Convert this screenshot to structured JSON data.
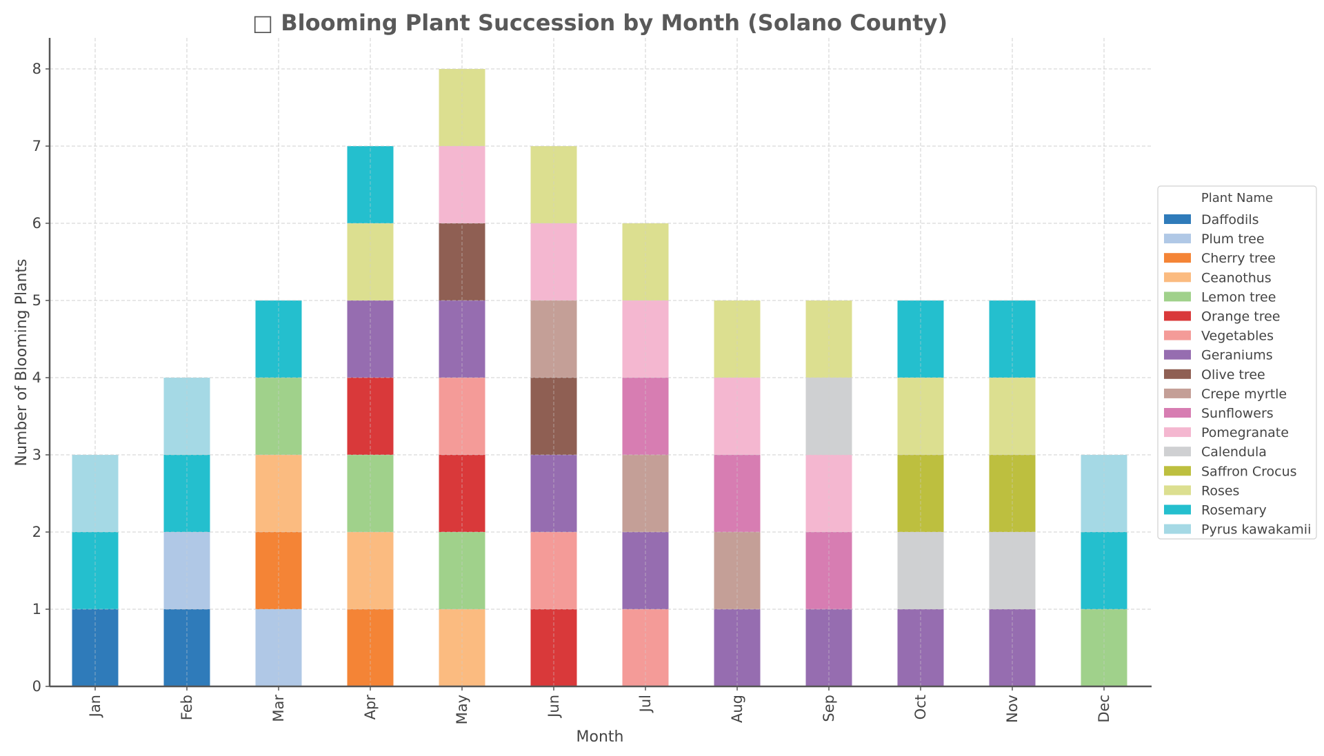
{
  "chart_data": {
    "type": "bar",
    "stacked": true,
    "title": "□ Blooming Plant Succession by Month (Solano County)",
    "xlabel": "Month",
    "ylabel": "Number of Blooming Plants",
    "ylim": [
      0,
      8.4
    ],
    "yticks": [
      0,
      1,
      2,
      3,
      4,
      5,
      6,
      7,
      8
    ],
    "grid": true,
    "legend_title": "Plant Name",
    "legend_position": "center-right",
    "categories": [
      "Jan",
      "Feb",
      "Mar",
      "Apr",
      "May",
      "Jun",
      "Jul",
      "Aug",
      "Sep",
      "Oct",
      "Nov",
      "Dec"
    ],
    "series": [
      {
        "name": "Daffodils",
        "color": "#2f7bba",
        "values": [
          1,
          1,
          0,
          0,
          0,
          0,
          0,
          0,
          0,
          0,
          0,
          0
        ]
      },
      {
        "name": "Plum tree",
        "color": "#b0c8e6",
        "values": [
          0,
          1,
          1,
          0,
          0,
          0,
          0,
          0,
          0,
          0,
          0,
          0
        ]
      },
      {
        "name": "Cherry tree",
        "color": "#f48436",
        "values": [
          0,
          0,
          1,
          1,
          0,
          0,
          0,
          0,
          0,
          0,
          0,
          0
        ]
      },
      {
        "name": "Ceanothus",
        "color": "#fbbb80",
        "values": [
          0,
          0,
          1,
          1,
          1,
          0,
          0,
          0,
          0,
          0,
          0,
          0
        ]
      },
      {
        "name": "Lemon tree",
        "color": "#a0d18b",
        "values": [
          0,
          0,
          1,
          1,
          1,
          0,
          0,
          0,
          0,
          0,
          0,
          1
        ]
      },
      {
        "name": "Orange tree",
        "color": "#d9393a",
        "values": [
          0,
          0,
          0,
          1,
          1,
          1,
          0,
          0,
          0,
          0,
          0,
          0
        ]
      },
      {
        "name": "Vegetables",
        "color": "#f49b98",
        "values": [
          0,
          0,
          0,
          0,
          1,
          1,
          1,
          0,
          0,
          0,
          0,
          0
        ]
      },
      {
        "name": "Geraniums",
        "color": "#966db0",
        "values": [
          0,
          0,
          0,
          1,
          1,
          1,
          1,
          1,
          1,
          1,
          1,
          0
        ]
      },
      {
        "name": "Olive tree",
        "color": "#8f5f53",
        "values": [
          0,
          0,
          0,
          0,
          1,
          1,
          0,
          0,
          0,
          0,
          0,
          0
        ]
      },
      {
        "name": "Crepe myrtle",
        "color": "#c49f97",
        "values": [
          0,
          0,
          0,
          0,
          0,
          1,
          1,
          1,
          0,
          0,
          0,
          0
        ]
      },
      {
        "name": "Sunflowers",
        "color": "#d77db2",
        "values": [
          0,
          0,
          0,
          0,
          0,
          0,
          1,
          1,
          1,
          0,
          0,
          0
        ]
      },
      {
        "name": "Pomegranate",
        "color": "#f4b7d0",
        "values": [
          0,
          0,
          0,
          0,
          1,
          1,
          1,
          1,
          1,
          0,
          0,
          0
        ]
      },
      {
        "name": "Calendula",
        "color": "#cfd0d2",
        "values": [
          0,
          0,
          0,
          0,
          0,
          0,
          0,
          0,
          1,
          1,
          1,
          0
        ]
      },
      {
        "name": "Saffron Crocus",
        "color": "#bdbf3f",
        "values": [
          0,
          0,
          0,
          0,
          0,
          0,
          0,
          0,
          0,
          1,
          1,
          0
        ]
      },
      {
        "name": "Roses",
        "color": "#dcdf90",
        "values": [
          0,
          0,
          0,
          1,
          1,
          1,
          1,
          1,
          1,
          1,
          1,
          0
        ]
      },
      {
        "name": "Rosemary",
        "color": "#24bfce",
        "values": [
          1,
          1,
          1,
          1,
          0,
          0,
          0,
          0,
          0,
          1,
          1,
          1
        ]
      },
      {
        "name": "Pyrus kawakamii",
        "color": "#a5d9e5",
        "values": [
          1,
          1,
          0,
          0,
          0,
          0,
          0,
          0,
          0,
          0,
          0,
          1
        ]
      }
    ],
    "totals": [
      3,
      4,
      5,
      7,
      8,
      7,
      6,
      5,
      5,
      5,
      5,
      3
    ]
  }
}
